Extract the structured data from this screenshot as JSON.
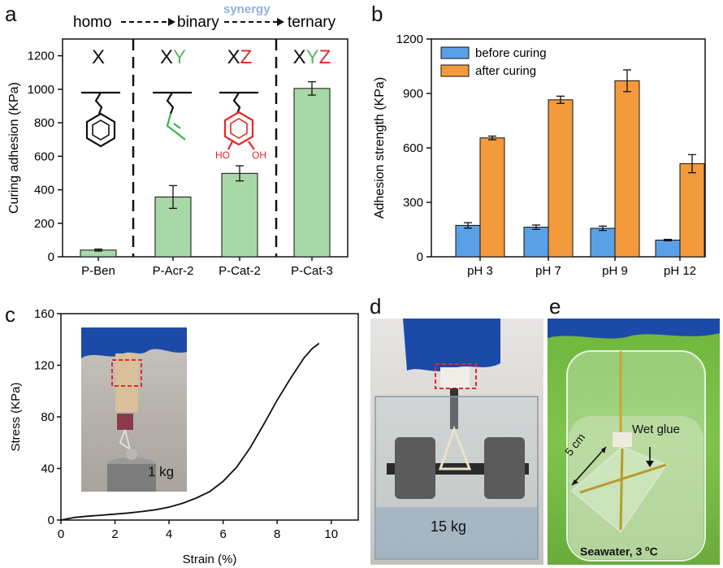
{
  "panel_labels": {
    "a": "a",
    "b": "b",
    "c": "c",
    "d": "d",
    "e": "e"
  },
  "header_a": {
    "homo": "homo",
    "binary": "binary",
    "synergy": "synergy",
    "ternary": "ternary"
  },
  "chart_data": [
    {
      "type": "bar",
      "panel": "a",
      "ylabel": "Curing adhesion (KPa)",
      "ylim": [
        0,
        1300
      ],
      "yticks": [
        0,
        200,
        400,
        600,
        800,
        1000,
        1200
      ],
      "categories": [
        "P-Ben",
        "P-Acr-2",
        "P-Cat-2",
        "P-Cat-3"
      ],
      "values": [
        40,
        357,
        498,
        1005
      ],
      "errors": [
        6,
        68,
        45,
        40
      ],
      "group_letters": [
        [
          {
            "t": "X",
            "c": "#111111"
          }
        ],
        [
          {
            "t": "X",
            "c": "#111111"
          },
          {
            "t": "Y",
            "c": "#5cb85c"
          }
        ],
        [
          {
            "t": "X",
            "c": "#111111"
          },
          {
            "t": "Z",
            "c": "#e5262a"
          }
        ],
        [
          {
            "t": "X",
            "c": "#111111"
          },
          {
            "t": "Y",
            "c": "#5cb85c"
          },
          {
            "t": "Z",
            "c": "#e5262a"
          }
        ]
      ],
      "ho_label": "HO",
      "oh_label": "OH",
      "bar_color": "#a9d8a8",
      "grid": false
    },
    {
      "type": "bar",
      "panel": "b",
      "ylabel": "Adhesion strength  (KPa)",
      "ylim": [
        0,
        1200
      ],
      "yticks": [
        0,
        300,
        600,
        900,
        1200
      ],
      "categories": [
        "pH 3",
        "pH 7",
        "pH 9",
        "pH 12"
      ],
      "series": [
        {
          "name": "before curing",
          "values": [
            173,
            163,
            157,
            92
          ],
          "errors": [
            15,
            12,
            12,
            4
          ],
          "color": "#5aa0e6"
        },
        {
          "name": " after   curing",
          "values": [
            655,
            865,
            970,
            513
          ],
          "errors": [
            10,
            20,
            60,
            50
          ],
          "color": "#f39a3c"
        }
      ],
      "legend": "top-left",
      "grid": false
    },
    {
      "type": "line",
      "panel": "c",
      "xlabel": "Strain (%)",
      "ylabel": "Stress (KPa)",
      "xlim": [
        0,
        11
      ],
      "ylim": [
        0,
        160
      ],
      "xticks": [
        0,
        2,
        4,
        6,
        8,
        10
      ],
      "yticks": [
        0,
        40,
        80,
        120,
        160
      ],
      "x": [
        0,
        0.5,
        1,
        1.5,
        2,
        2.5,
        3,
        3.5,
        4,
        4.5,
        5,
        5.5,
        6,
        6.5,
        7,
        7.5,
        8,
        8.5,
        9,
        9.3,
        9.55
      ],
      "y": [
        0,
        2,
        3,
        3.8,
        4.6,
        5.5,
        6.6,
        8,
        10,
        13,
        17,
        22,
        30,
        41,
        56,
        74,
        93,
        110,
        126,
        133,
        137
      ],
      "grid": false
    }
  ],
  "photo_c": {
    "weight_label": "1 kg"
  },
  "photo_d": {
    "weight_label": "15 kg"
  },
  "photo_e": {
    "length_label": "5 cm",
    "glue_label": "Wet glue",
    "caption_main": "Seawater, 3 ",
    "caption_sup": "o",
    "caption_unit": "C"
  }
}
